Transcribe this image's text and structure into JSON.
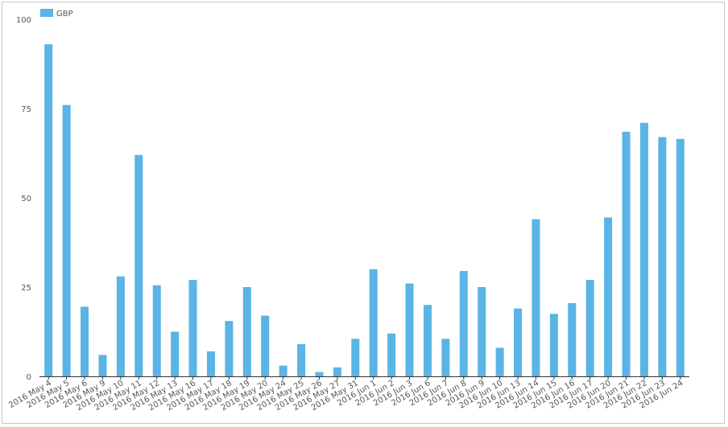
{
  "chart_data": {
    "type": "bar",
    "legend_position": "top-left",
    "series": [
      {
        "name": "GBP",
        "color": "#5ab4e5",
        "values": [
          93,
          76,
          19.5,
          6,
          28,
          62,
          25.5,
          12.5,
          27,
          7,
          15.5,
          25,
          17,
          3,
          9,
          1.2,
          2.5,
          10.5,
          30,
          12,
          26,
          20,
          10.5,
          29.5,
          25,
          8,
          19,
          44,
          17.5,
          20.5,
          27,
          44.5,
          68.5,
          71,
          67,
          66.5
        ]
      }
    ],
    "categories": [
      "2016 May 4",
      "2016 May 5",
      "2016 May 6",
      "2016 May 9",
      "2016 May 10",
      "2016 May 11",
      "2016 May 12",
      "2016 May 13",
      "2016 May 16",
      "2016 May 17",
      "2016 May 18",
      "2016 May 19",
      "2016 May 20",
      "2016 May 24",
      "2016 May 25",
      "2016 May 26",
      "2016 May 27",
      "2016 May 31",
      "2016 Jun 1",
      "2016 Jun 2",
      "2016 Jun 3",
      "2016 Jun 6",
      "2016 Jun 7",
      "2016 Jun 8",
      "2016 Jun 9",
      "2016 Jun 10",
      "2016 Jun 13",
      "2016 Jun 14",
      "2016 Jun 15",
      "2016 Jun 16",
      "2016 Jun 17",
      "2016 Jun 20",
      "2016 Jun 21",
      "2016 Jun 22",
      "2016 Jun 23",
      "2016 Jun 24"
    ],
    "ylim": [
      0,
      100
    ],
    "yticks": [
      0,
      25,
      50,
      75,
      100
    ],
    "grid": false,
    "title": "",
    "xlabel": "",
    "ylabel": ""
  }
}
